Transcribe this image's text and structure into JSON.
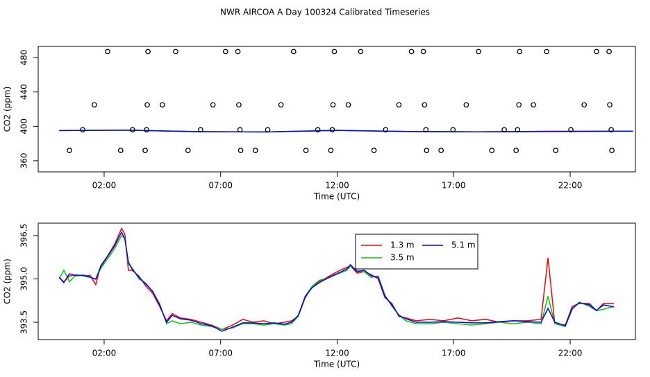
{
  "title": "NWR AIRCOA A  Day 100324  Calibrated Timeseries",
  "chart_data": [
    {
      "type": "line",
      "xlabel": "Time (UTC)",
      "ylabel": "CO2 (ppm)",
      "xlim": [
        -0.83,
        24.8
      ],
      "xticks": [
        {
          "value": 2,
          "label": "02:00"
        },
        {
          "value": 7,
          "label": "07:00"
        },
        {
          "value": 12,
          "label": "12:00"
        },
        {
          "value": 17,
          "label": "17:00"
        },
        {
          "value": 22,
          "label": "22:00"
        }
      ],
      "ylim": [
        347,
        493
      ],
      "yticks": [
        360,
        400,
        440,
        480
      ],
      "x": [
        0.07,
        3,
        6,
        9,
        12,
        15,
        18,
        21,
        24.7
      ],
      "series": [
        {
          "color": "#ff0000",
          "values": [
            395.1,
            395.6,
            393.8,
            393.5,
            395.3,
            394.0,
            393.6,
            394.3,
            394.4
          ]
        },
        {
          "color": "#00cc00",
          "values": [
            395.1,
            395.5,
            393.7,
            393.5,
            395.2,
            394.0,
            393.6,
            394.0,
            394.3
          ]
        },
        {
          "color": "#0000ff",
          "values": [
            395.1,
            395.6,
            393.8,
            393.5,
            395.3,
            394.0,
            393.6,
            393.9,
            394.4
          ]
        }
      ],
      "markers": {
        "color": "#000000",
        "x": [
          2.15,
          3.88,
          5.07,
          7.21,
          7.74,
          10.13,
          11.88,
          13.01,
          15.19,
          15.7,
          18.07,
          19.83,
          20.99,
          23.13,
          23.67,
          1.58,
          3.85,
          4.5,
          6.67,
          7.78,
          9.59,
          11.82,
          12.48,
          14.65,
          15.75,
          17.54,
          19.8,
          20.42,
          22.6,
          23.7,
          1.08,
          3.22,
          3.82,
          6.14,
          7.83,
          9.02,
          11.17,
          11.79,
          14.08,
          15.81,
          16.97,
          19.17,
          19.74,
          22.03,
          23.76,
          0.51,
          2.71,
          3.76,
          5.6,
          7.86,
          8.49,
          10.66,
          11.73,
          13.58,
          15.84,
          16.46,
          18.64,
          19.68,
          21.38,
          23.79
        ],
        "y": [
          487,
          487,
          487,
          487,
          487,
          487,
          487,
          487,
          487,
          487,
          487,
          487,
          487,
          487,
          487,
          425,
          425,
          425,
          425,
          425,
          425,
          425,
          425,
          425,
          425,
          425,
          425,
          425,
          425,
          425,
          396,
          396,
          396,
          396,
          396,
          396,
          396,
          396,
          396,
          396,
          396,
          396,
          396,
          396,
          396,
          372,
          372,
          372,
          372,
          372,
          372,
          372,
          372,
          372,
          372,
          372,
          372,
          372,
          372,
          372
        ]
      }
    },
    {
      "type": "line",
      "xlabel": "Time (UTC)",
      "ylabel": "CO2 (ppm)",
      "xlim": [
        -0.83,
        24.8
      ],
      "xticks": [
        {
          "value": 2,
          "label": "02:00"
        },
        {
          "value": 7,
          "label": "07:00"
        },
        {
          "value": 12,
          "label": "12:00"
        },
        {
          "value": 17,
          "label": "17:00"
        },
        {
          "value": 22,
          "label": "22:00"
        }
      ],
      "ylim": [
        392.9,
        396.93
      ],
      "yticks": [
        393.5,
        {
          "value": 395,
          "label": "395.0"
        },
        396.5
      ],
      "legend": "top",
      "x": [
        0.07,
        0.27,
        0.51,
        0.81,
        1.11,
        1.4,
        1.64,
        1.85,
        2.15,
        2.45,
        2.75,
        2.89,
        3.04,
        3.19,
        3.49,
        3.79,
        4.08,
        4.38,
        4.68,
        4.92,
        5.27,
        5.72,
        6.17,
        6.61,
        7.06,
        7.51,
        7.95,
        8.4,
        8.85,
        9.29,
        9.74,
        10.04,
        10.33,
        10.63,
        10.93,
        11.23,
        11.67,
        12.12,
        12.42,
        12.57,
        12.86,
        13.16,
        13.46,
        13.76,
        14.05,
        14.35,
        14.65,
        14.95,
        15.39,
        15.99,
        16.58,
        17.18,
        17.77,
        18.37,
        18.96,
        19.56,
        20.15,
        20.75,
        21.05,
        21.34,
        21.79,
        22.09,
        22.39,
        22.83,
        23.13,
        23.43,
        23.88
      ],
      "series": [
        {
          "name": "1.3 m",
          "color": "#ff0000",
          "values": [
            395.06,
            394.9,
            395.1,
            395.15,
            395.1,
            395.12,
            394.8,
            395.45,
            395.8,
            396.2,
            396.75,
            396.55,
            395.3,
            395.3,
            395.1,
            394.75,
            394.5,
            394.05,
            393.55,
            393.8,
            393.65,
            393.6,
            393.5,
            393.4,
            393.25,
            393.4,
            393.6,
            393.5,
            393.55,
            393.45,
            393.5,
            393.55,
            393.7,
            394.35,
            394.75,
            394.9,
            395.1,
            395.3,
            395.4,
            395.45,
            395.2,
            395.25,
            395.15,
            395.0,
            394.35,
            394.15,
            393.7,
            393.65,
            393.55,
            393.6,
            393.55,
            393.65,
            393.55,
            393.6,
            393.5,
            393.55,
            393.55,
            393.6,
            395.73,
            393.45,
            393.4,
            394.05,
            394.15,
            394.15,
            393.9,
            394.15,
            394.15
          ]
        },
        {
          "name": "3.5 m",
          "color": "#00cc00",
          "values": [
            395.0,
            395.3,
            394.9,
            395.15,
            395.1,
            395.05,
            395.0,
            395.35,
            395.7,
            396.05,
            396.5,
            396.4,
            395.5,
            395.4,
            395.0,
            394.85,
            394.55,
            394.15,
            393.45,
            393.55,
            393.45,
            393.5,
            393.4,
            393.35,
            393.25,
            393.3,
            393.45,
            393.45,
            393.4,
            393.45,
            393.4,
            393.45,
            393.7,
            394.4,
            394.75,
            394.95,
            395.05,
            395.2,
            395.3,
            395.45,
            395.3,
            395.25,
            395.05,
            395.1,
            394.45,
            394.05,
            393.75,
            393.55,
            393.45,
            393.45,
            393.5,
            393.45,
            393.4,
            393.45,
            393.5,
            393.45,
            393.5,
            393.45,
            394.4,
            393.45,
            393.35,
            393.95,
            394.2,
            394.05,
            393.9,
            393.95,
            394.05
          ]
        },
        {
          "name": "5.1 m",
          "color": "#0000ff",
          "values": [
            395.06,
            394.87,
            395.18,
            395.11,
            395.13,
            395.06,
            394.99,
            395.42,
            395.78,
            396.14,
            396.62,
            396.38,
            395.59,
            395.35,
            395.06,
            394.82,
            394.58,
            394.1,
            393.5,
            393.74,
            393.62,
            393.57,
            393.45,
            393.38,
            393.19,
            393.33,
            393.48,
            393.48,
            393.45,
            393.48,
            393.43,
            393.5,
            393.74,
            394.39,
            394.7,
            394.87,
            395.06,
            395.23,
            395.35,
            395.49,
            395.25,
            395.3,
            395.11,
            395.06,
            394.39,
            394.1,
            393.74,
            393.62,
            393.5,
            393.5,
            393.52,
            393.5,
            393.48,
            393.48,
            393.52,
            393.55,
            393.52,
            393.5,
            393.98,
            393.5,
            393.38,
            393.98,
            394.17,
            394.1,
            393.91,
            394.1,
            394.03
          ]
        }
      ]
    }
  ]
}
